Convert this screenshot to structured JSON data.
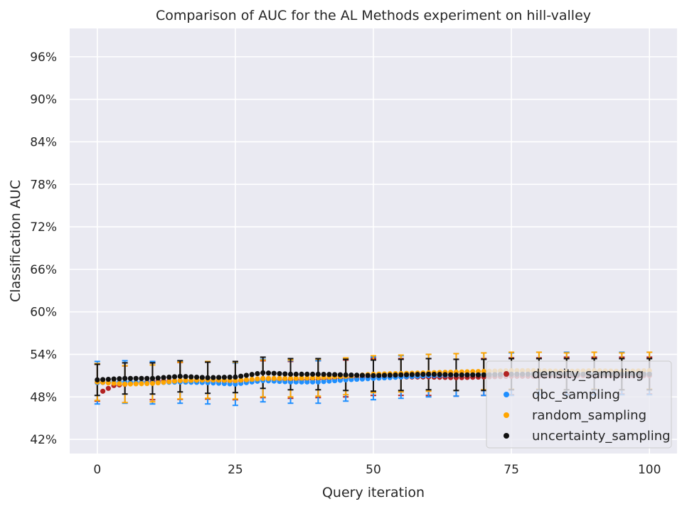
{
  "chart_data": {
    "type": "scatter",
    "title": "Comparison of AUC for the AL Methods experiment on hill-valley",
    "xlabel": "Query iteration",
    "ylabel": "Classification AUC",
    "xlim": [
      -5,
      105
    ],
    "ylim": [
      0.4,
      1.0
    ],
    "x_ticks": [
      0,
      25,
      50,
      75,
      100
    ],
    "x_tick_labels": [
      "0",
      "25",
      "50",
      "75",
      "100"
    ],
    "y_ticks": [
      0.42,
      0.48,
      0.54,
      0.6,
      0.66,
      0.72,
      0.78,
      0.84,
      0.9,
      0.96
    ],
    "y_tick_labels": [
      "42%",
      "48%",
      "54%",
      "60%",
      "66%",
      "72%",
      "78%",
      "84%",
      "90%",
      "96%"
    ],
    "grid": true,
    "legend_position": "lower-right",
    "error_bars_every": 5,
    "series": [
      {
        "name": "density_sampling",
        "color": "#b22222",
        "knots": [
          [
            0,
            0.5
          ],
          [
            1,
            0.488
          ],
          [
            3,
            0.496
          ],
          [
            10,
            0.502
          ],
          [
            20,
            0.503
          ],
          [
            25,
            0.502
          ],
          [
            30,
            0.505
          ],
          [
            35,
            0.504
          ],
          [
            40,
            0.505
          ],
          [
            45,
            0.506
          ],
          [
            50,
            0.508
          ],
          [
            55,
            0.508
          ],
          [
            60,
            0.508
          ],
          [
            65,
            0.507
          ],
          [
            70,
            0.508
          ],
          [
            75,
            0.509
          ],
          [
            80,
            0.509
          ],
          [
            85,
            0.51
          ],
          [
            90,
            0.51
          ],
          [
            95,
            0.51
          ],
          [
            100,
            0.51
          ]
        ],
        "err": 0.026
      },
      {
        "name": "qbc_sampling",
        "color": "#1f8fff",
        "knots": [
          [
            0,
            0.5
          ],
          [
            5,
            0.501
          ],
          [
            10,
            0.5
          ],
          [
            15,
            0.501
          ],
          [
            20,
            0.5
          ],
          [
            25,
            0.498
          ],
          [
            30,
            0.503
          ],
          [
            35,
            0.501
          ],
          [
            40,
            0.501
          ],
          [
            45,
            0.504
          ],
          [
            50,
            0.506
          ],
          [
            55,
            0.508
          ],
          [
            60,
            0.51
          ],
          [
            65,
            0.511
          ],
          [
            70,
            0.512
          ],
          [
            75,
            0.512
          ],
          [
            80,
            0.513
          ],
          [
            85,
            0.513
          ],
          [
            90,
            0.513
          ],
          [
            95,
            0.513
          ],
          [
            100,
            0.513
          ]
        ],
        "err": 0.03
      },
      {
        "name": "random_sampling",
        "color": "#ffa500",
        "knots": [
          [
            0,
            0.501
          ],
          [
            5,
            0.498
          ],
          [
            10,
            0.499
          ],
          [
            15,
            0.503
          ],
          [
            20,
            0.504
          ],
          [
            25,
            0.503
          ],
          [
            30,
            0.506
          ],
          [
            35,
            0.506
          ],
          [
            40,
            0.507
          ],
          [
            45,
            0.509
          ],
          [
            50,
            0.512
          ],
          [
            55,
            0.513
          ],
          [
            60,
            0.514
          ],
          [
            65,
            0.515
          ],
          [
            70,
            0.516
          ],
          [
            75,
            0.517
          ],
          [
            80,
            0.517
          ],
          [
            85,
            0.516
          ],
          [
            90,
            0.517
          ],
          [
            95,
            0.516
          ],
          [
            100,
            0.517
          ]
        ],
        "err": 0.026
      },
      {
        "name": "uncertainty_sampling",
        "color": "#111111",
        "knots": [
          [
            0,
            0.504
          ],
          [
            5,
            0.506
          ],
          [
            10,
            0.506
          ],
          [
            15,
            0.509
          ],
          [
            20,
            0.507
          ],
          [
            25,
            0.508
          ],
          [
            30,
            0.514
          ],
          [
            35,
            0.512
          ],
          [
            40,
            0.512
          ],
          [
            45,
            0.511
          ],
          [
            50,
            0.51
          ],
          [
            55,
            0.511
          ],
          [
            60,
            0.512
          ],
          [
            65,
            0.511
          ],
          [
            70,
            0.511
          ],
          [
            75,
            0.512
          ],
          [
            80,
            0.512
          ],
          [
            85,
            0.512
          ],
          [
            90,
            0.512
          ],
          [
            95,
            0.512
          ],
          [
            100,
            0.512
          ]
        ],
        "err": 0.022
      }
    ]
  }
}
